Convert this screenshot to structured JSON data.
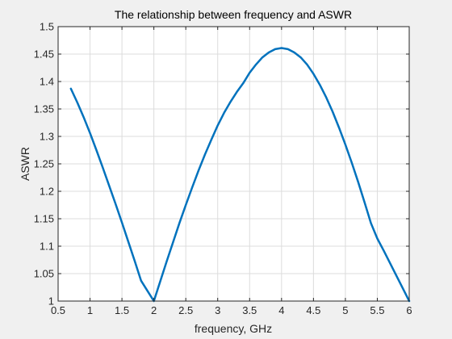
{
  "chart_data": {
    "type": "line",
    "title": "The relationship between frequency and ASWR",
    "xlabel": "frequency, GHz",
    "ylabel": "ASWR",
    "xlim": [
      0.5,
      6
    ],
    "ylim": [
      1,
      1.5
    ],
    "grid": true,
    "xticks": [
      0.5,
      1,
      1.5,
      2,
      2.5,
      3,
      3.5,
      4,
      4.5,
      5,
      5.5,
      6
    ],
    "xtick_labels": [
      "0.5",
      "1",
      "1.5",
      "2",
      "2.5",
      "3",
      "3.5",
      "4",
      "4.5",
      "5",
      "5.5",
      "6"
    ],
    "yticks": [
      1,
      1.05,
      1.1,
      1.15,
      1.2,
      1.25,
      1.3,
      1.35,
      1.4,
      1.45,
      1.5
    ],
    "ytick_labels": [
      "1",
      "1.05",
      "1.1",
      "1.15",
      "1.2",
      "1.25",
      "1.3",
      "1.35",
      "1.4",
      "1.45",
      "1.5"
    ],
    "series": [
      {
        "color": "#0072bd",
        "x": [
          0.7,
          0.8,
          0.9,
          1.0,
          1.1,
          1.2,
          1.3,
          1.4,
          1.5,
          1.6,
          1.7,
          1.8,
          1.9,
          2.0,
          2.1,
          2.2,
          2.3,
          2.4,
          2.5,
          2.6,
          2.7,
          2.8,
          2.9,
          3.0,
          3.1,
          3.2,
          3.3,
          3.4,
          3.5,
          3.6,
          3.7,
          3.8,
          3.9,
          4.0,
          4.1,
          4.2,
          4.3,
          4.4,
          4.5,
          4.6,
          4.7,
          4.8,
          4.9,
          5.0,
          5.1,
          5.2,
          5.3,
          5.4,
          5.5,
          5.6,
          5.7,
          5.8,
          5.9,
          6.0
        ],
        "y": [
          1.387,
          1.362,
          1.335,
          1.306,
          1.275,
          1.243,
          1.21,
          1.177,
          1.143,
          1.108,
          1.073,
          1.037,
          1.0185,
          1.0,
          1.036,
          1.072,
          1.107,
          1.142,
          1.175,
          1.207,
          1.238,
          1.267,
          1.294,
          1.32,
          1.343,
          1.363,
          1.381,
          1.397,
          1.416,
          1.431,
          1.444,
          1.453,
          1.459,
          1.461,
          1.459,
          1.453,
          1.444,
          1.431,
          1.414,
          1.394,
          1.371,
          1.345,
          1.316,
          1.285,
          1.252,
          1.217,
          1.18,
          1.142,
          1.114,
          1.092,
          1.069,
          1.046,
          1.023,
          1.0
        ]
      }
    ]
  }
}
